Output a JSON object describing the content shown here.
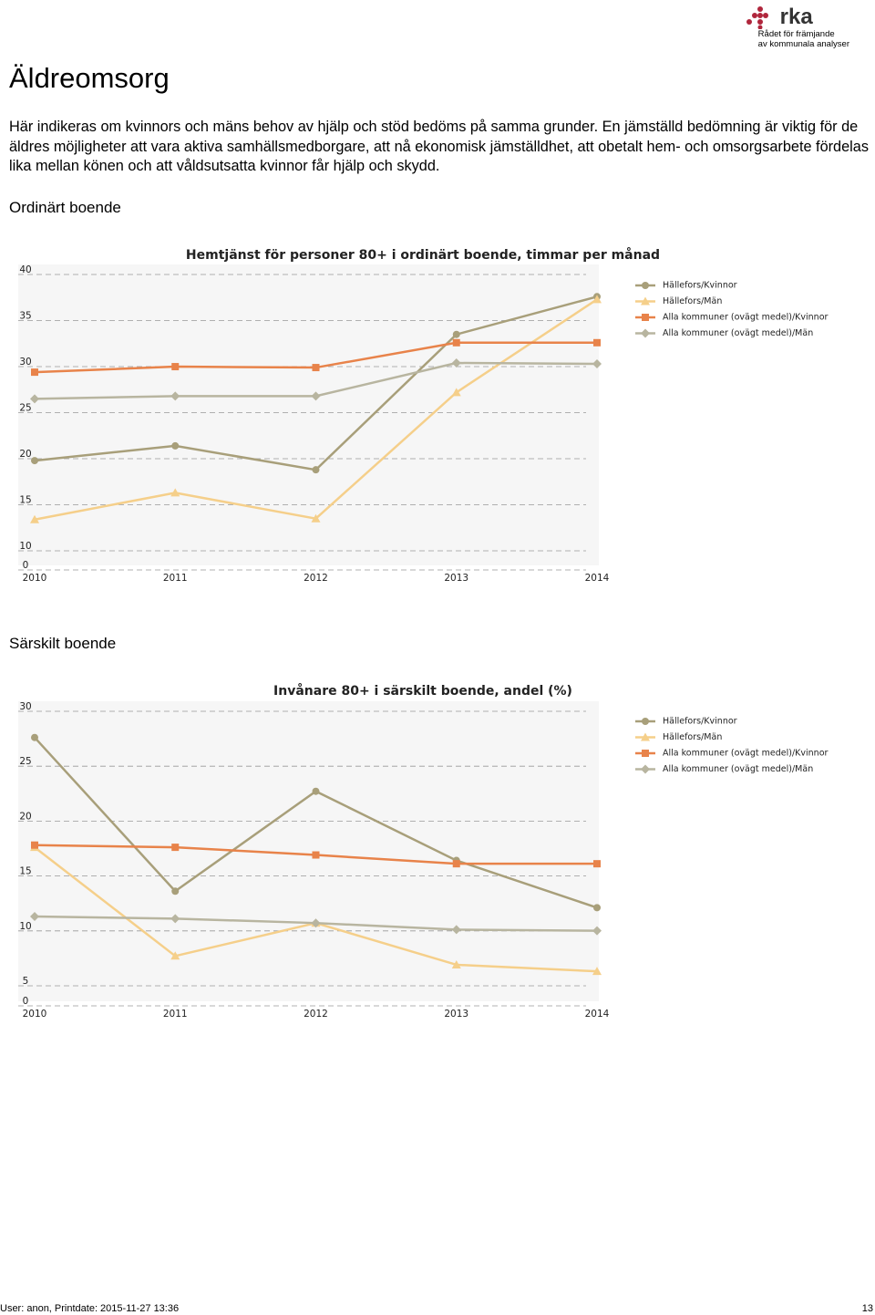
{
  "header": {
    "title": "Äldreomsorg",
    "logo": "rka",
    "logo_subtitle": [
      "Rådet för främjande",
      "av kommunala analyser"
    ]
  },
  "intro": "Här indikeras om kvinnors och mäns behov av hjälp och stöd bedöms på samma grunder. En jämställd bedömning är viktig för de äldres möjligheter att vara aktiva samhällsmedborgare, att nå ekonomisk jämställdhet, att obetalt hem- och omsorgsarbete fördelas lika mellan könen och att våldsutsatta kvinnor får hjälp och skydd.",
  "sections": [
    "Ordinärt boende",
    "Särskilt boende"
  ],
  "footer": {
    "user": "User: anon, Printdate: 2015-11-27 13:36",
    "page": "13"
  },
  "chart_data": [
    {
      "type": "line",
      "title": "Hemtjänst för personer 80+ i ordinärt boende, timmar per månad",
      "categories": [
        "2010",
        "2011",
        "2012",
        "2013",
        "2014"
      ],
      "ylim": [
        0,
        40
      ],
      "yticks": [
        0,
        10,
        15,
        20,
        25,
        30,
        35,
        40
      ],
      "axis_break": [
        0,
        10
      ],
      "grid": true,
      "legend": "right",
      "series": [
        {
          "name": "Hällefors/Kvinnor",
          "color": "#a89f7a",
          "marker": "circle",
          "values": [
            19.3,
            20.9,
            18.3,
            33.0,
            37.1
          ]
        },
        {
          "name": "Hällefors/Män",
          "color": "#f5cf8a",
          "marker": "triangle",
          "values": [
            12.9,
            15.8,
            13.0,
            26.7,
            36.8
          ]
        },
        {
          "name": "Alla kommuner (ovägt medel)/Kvinnor",
          "color": "#e8834a",
          "marker": "square",
          "values": [
            28.9,
            29.5,
            29.4,
            32.1,
            32.1
          ]
        },
        {
          "name": "Alla kommuner (ovägt medel)/Män",
          "color": "#b8b5a0",
          "marker": "diamond",
          "values": [
            26.0,
            26.3,
            26.3,
            29.9,
            29.8
          ]
        }
      ]
    },
    {
      "type": "line",
      "title": "Invånare 80+ i särskilt boende, andel (%)",
      "categories": [
        "2010",
        "2011",
        "2012",
        "2013",
        "2014"
      ],
      "ylim": [
        0,
        30
      ],
      "yticks": [
        0,
        5,
        10,
        15,
        20,
        25,
        30
      ],
      "axis_break": [
        0,
        5
      ],
      "grid": true,
      "legend": "right",
      "series": [
        {
          "name": "Hällefors/Kvinnor",
          "color": "#a89f7a",
          "marker": "circle",
          "values": [
            27.2,
            13.2,
            22.3,
            16.0,
            11.7
          ]
        },
        {
          "name": "Hällefors/Män",
          "color": "#f5cf8a",
          "marker": "triangle",
          "values": [
            17.2,
            7.3,
            10.3,
            6.5,
            5.9
          ]
        },
        {
          "name": "Alla kommuner (ovägt medel)/Kvinnor",
          "color": "#e8834a",
          "marker": "square",
          "values": [
            17.4,
            17.2,
            16.5,
            15.7,
            15.7
          ]
        },
        {
          "name": "Alla kommuner (ovägt medel)/Män",
          "color": "#b8b5a0",
          "marker": "diamond",
          "values": [
            10.9,
            10.7,
            10.3,
            9.7,
            9.6
          ]
        }
      ]
    }
  ]
}
